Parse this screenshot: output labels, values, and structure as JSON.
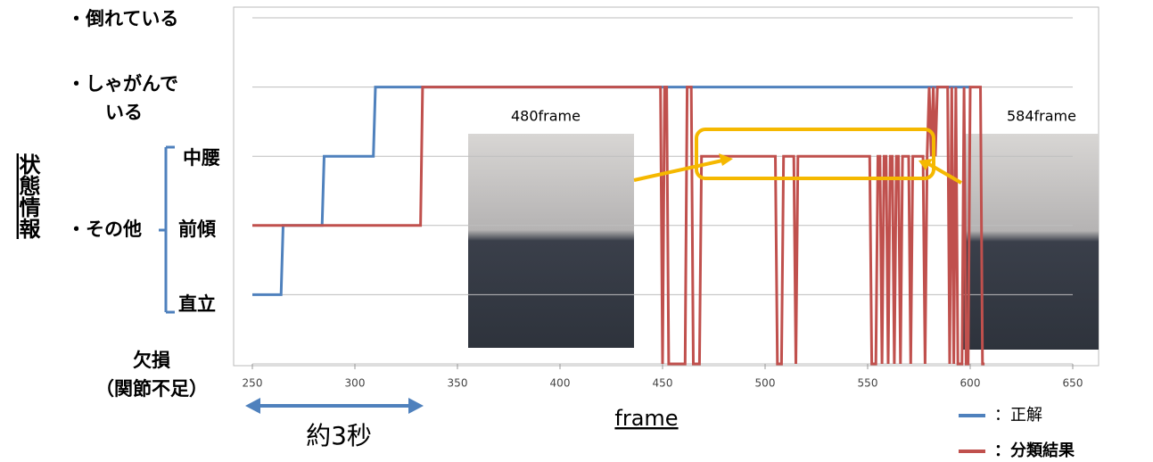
{
  "chart_data": {
    "type": "line",
    "y_title": "状態情報",
    "x_label": "frame",
    "group_label": "・その他",
    "annotation": "約3秒",
    "captions": [
      "480frame",
      "584frame"
    ],
    "xlim": [
      250,
      650
    ],
    "xticks": [
      250,
      300,
      350,
      400,
      450,
      500,
      550,
      600,
      650
    ],
    "ylim": [
      0,
      5
    ],
    "yticks": [
      {
        "value": 5,
        "label": "・倒れている"
      },
      {
        "value": 4,
        "label": "・しゃがんで\nいる"
      },
      {
        "value": 3,
        "label": "中腰"
      },
      {
        "value": 2,
        "label": "前傾"
      },
      {
        "value": 1,
        "label": "直立"
      },
      {
        "value": 0,
        "label": "欠損\n（関節不足）"
      }
    ],
    "grid": true,
    "series": [
      {
        "name": "：正解",
        "color": "#4f81bd",
        "x": [
          250,
          264,
          265,
          284,
          285,
          309,
          310,
          600
        ],
        "values": [
          1,
          1,
          2,
          2,
          3,
          3,
          4,
          4
        ]
      },
      {
        "name": "：分類結果",
        "color": "#c0504d",
        "x": [
          250,
          332,
          333,
          449,
          450,
          451,
          452,
          453,
          461,
          462,
          464,
          465,
          468,
          469,
          505,
          506,
          508,
          509,
          514,
          515,
          516,
          551,
          552,
          554,
          555,
          556,
          557,
          558,
          559,
          560,
          561,
          562,
          563,
          564,
          565,
          566,
          567,
          570,
          571,
          572,
          577,
          578,
          579,
          580,
          581,
          582,
          583,
          584,
          589,
          590,
          591,
          592,
          593,
          594,
          596,
          597,
          598,
          599,
          600,
          605,
          606,
          607
        ],
        "values": [
          2,
          2,
          4,
          4,
          0,
          4,
          4,
          0,
          0,
          4,
          4,
          0,
          0,
          3,
          3,
          0,
          0,
          3,
          3,
          0,
          3,
          3,
          0,
          0,
          3,
          3,
          0,
          3,
          3,
          0,
          3,
          3,
          0,
          3,
          3,
          0,
          3,
          3,
          0,
          3,
          3,
          0,
          3,
          4,
          3,
          4,
          3,
          4,
          4,
          0,
          4,
          0,
          4,
          0,
          0,
          4,
          0,
          0,
          4,
          4,
          0,
          0
        ]
      }
    ]
  }
}
